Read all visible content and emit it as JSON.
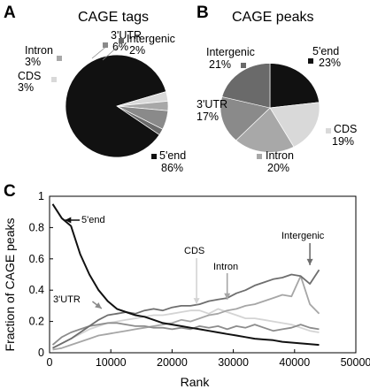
{
  "chart_data": [
    {
      "panel": "A",
      "type": "pie",
      "title": "CAGE tags",
      "slices": [
        {
          "label": "5'end",
          "value": 86,
          "pct_text": "86%",
          "color": "#111111"
        },
        {
          "label": "CDS",
          "value": 3,
          "pct_text": "3%",
          "color": "#d9d9d9"
        },
        {
          "label": "Intron",
          "value": 3,
          "pct_text": "3%",
          "color": "#a8a8a8"
        },
        {
          "label": "3'UTR",
          "value": 6,
          "pct_text": "6%",
          "color": "#8a8a8a"
        },
        {
          "label": "Intergenic",
          "value": 2,
          "pct_text": "2%",
          "color": "#6a6a6a"
        }
      ]
    },
    {
      "panel": "B",
      "type": "pie",
      "title": "CAGE peaks",
      "slices": [
        {
          "label": "5'end",
          "value": 23,
          "pct_text": "23%",
          "color": "#111111"
        },
        {
          "label": "CDS",
          "value": 19,
          "pct_text": "19%",
          "color": "#d9d9d9"
        },
        {
          "label": "Intron",
          "value": 20,
          "pct_text": "20%",
          "color": "#a8a8a8"
        },
        {
          "label": "3'UTR",
          "value": 17,
          "pct_text": "17%",
          "color": "#8a8a8a"
        },
        {
          "label": "Intergenic",
          "value": 21,
          "pct_text": "21%",
          "color": "#6a6a6a"
        }
      ]
    },
    {
      "panel": "C",
      "type": "line",
      "xlabel": "Rank",
      "ylabel": "Fraction of CAGE peaks",
      "xlim": [
        0,
        50000
      ],
      "ylim": [
        0,
        1
      ],
      "xticks": [
        0,
        10000,
        20000,
        30000,
        40000,
        50000
      ],
      "xtick_labels": [
        "0",
        "10000",
        "20000",
        "30000",
        "40000",
        "50000"
      ],
      "yticks": [
        0,
        0.2,
        0.4,
        0.6,
        0.8,
        1
      ],
      "ytick_labels": [
        "0",
        "0.2",
        "0.4",
        "0.6",
        "0.8",
        "1"
      ],
      "x": [
        500,
        2000,
        3500,
        5000,
        6500,
        8000,
        9500,
        11000,
        12500,
        14000,
        15500,
        17000,
        18500,
        20000,
        21500,
        23000,
        24500,
        26000,
        27500,
        29000,
        30500,
        32000,
        33500,
        35000,
        36500,
        38000,
        39500,
        41000,
        42500,
        44000
      ],
      "series": [
        {
          "name": "5'end",
          "color": "#111111",
          "values": [
            0.95,
            0.86,
            0.81,
            0.63,
            0.5,
            0.4,
            0.33,
            0.28,
            0.26,
            0.24,
            0.23,
            0.21,
            0.19,
            0.18,
            0.17,
            0.16,
            0.15,
            0.14,
            0.13,
            0.12,
            0.11,
            0.1,
            0.09,
            0.085,
            0.08,
            0.07,
            0.065,
            0.06,
            0.055,
            0.05
          ]
        },
        {
          "name": "CDS",
          "color": "#d4d4d4",
          "values": [
            0.03,
            0.06,
            0.09,
            0.12,
            0.15,
            0.17,
            0.19,
            0.2,
            0.21,
            0.22,
            0.23,
            0.24,
            0.24,
            0.25,
            0.26,
            0.27,
            0.27,
            0.25,
            0.28,
            0.26,
            0.24,
            0.22,
            0.22,
            0.21,
            0.2,
            0.19,
            0.18,
            0.16,
            0.14,
            0.13
          ]
        },
        {
          "name": "Intron",
          "color": "#a6a6a6",
          "values": [
            0.02,
            0.03,
            0.05,
            0.07,
            0.09,
            0.11,
            0.12,
            0.13,
            0.14,
            0.15,
            0.16,
            0.17,
            0.18,
            0.19,
            0.21,
            0.2,
            0.22,
            0.24,
            0.25,
            0.27,
            0.28,
            0.3,
            0.31,
            0.33,
            0.35,
            0.37,
            0.36,
            0.49,
            0.31,
            0.25
          ]
        },
        {
          "name": "3'UTR",
          "color": "#8c8c8c",
          "values": [
            0.05,
            0.1,
            0.13,
            0.15,
            0.17,
            0.18,
            0.19,
            0.19,
            0.18,
            0.17,
            0.17,
            0.16,
            0.16,
            0.15,
            0.16,
            0.15,
            0.17,
            0.16,
            0.17,
            0.15,
            0.17,
            0.16,
            0.18,
            0.16,
            0.14,
            0.15,
            0.16,
            0.18,
            0.16,
            0.15
          ]
        },
        {
          "name": "Intergenic",
          "color": "#6e6e6e",
          "values": [
            0.03,
            0.06,
            0.09,
            0.13,
            0.17,
            0.21,
            0.24,
            0.25,
            0.26,
            0.25,
            0.27,
            0.28,
            0.27,
            0.29,
            0.3,
            0.3,
            0.31,
            0.33,
            0.34,
            0.35,
            0.38,
            0.4,
            0.43,
            0.45,
            0.47,
            0.48,
            0.5,
            0.49,
            0.44,
            0.53
          ]
        }
      ],
      "annotations": [
        "5'end",
        "3'UTR",
        "CDS",
        "Intron",
        "Intergenic"
      ]
    }
  ]
}
